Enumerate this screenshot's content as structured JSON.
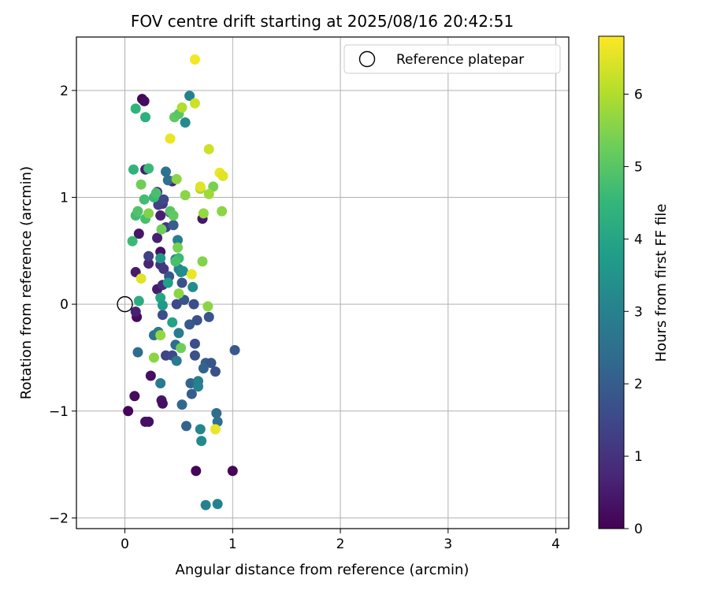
{
  "chart_data": {
    "type": "scatter",
    "title": "FOV centre drift starting at 2025/08/16 20:42:51",
    "xlabel": "Angular distance from reference (arcmin)",
    "ylabel": "Rotation from reference (arcmin)",
    "xlim": [
      -0.45,
      4.12
    ],
    "ylim": [
      -2.1,
      2.5
    ],
    "xticks": [
      0,
      1,
      2,
      3,
      4
    ],
    "yticks": [
      -2,
      -1,
      0,
      1,
      2
    ],
    "xtick_labels": [
      "0",
      "1",
      "2",
      "3",
      "4"
    ],
    "ytick_labels": [
      "−2",
      "−1",
      "0",
      "1",
      "2"
    ],
    "grid": true,
    "legend": {
      "position": "top-right",
      "label": "Reference platepar"
    },
    "reference_point": {
      "x": 0,
      "y": 0
    },
    "colorbar": {
      "label": "Hours from first FF file",
      "colormap": "viridis",
      "range": [
        0,
        6.8
      ],
      "ticks": [
        0,
        1,
        2,
        3,
        4,
        5,
        6
      ],
      "tick_labels": [
        "0",
        "1",
        "2",
        "3",
        "4",
        "5",
        "6"
      ]
    },
    "colormap_stops": [
      "#440154",
      "#482878",
      "#3e4989",
      "#31688e",
      "#26828e",
      "#1f9e89",
      "#35b779",
      "#6ece58",
      "#b5de2b",
      "#fde725"
    ],
    "series": [
      {
        "values": [
          {
            "x": 0.16,
            "y": 1.92,
            "c": 0.1
          },
          {
            "x": 0.18,
            "y": 1.9,
            "c": 0.2
          },
          {
            "x": 0.66,
            "y": -1.56,
            "c": 0.1
          },
          {
            "x": 1.0,
            "y": -1.56,
            "c": 0.1
          },
          {
            "x": 0.03,
            "y": -1.0,
            "c": 0.1
          },
          {
            "x": 0.09,
            "y": -0.86,
            "c": 0.2
          },
          {
            "x": 0.19,
            "y": -1.1,
            "c": 0.3
          },
          {
            "x": 0.22,
            "y": -1.1,
            "c": 0.3
          },
          {
            "x": 0.24,
            "y": -0.67,
            "c": 0.3
          },
          {
            "x": 0.34,
            "y": -0.9,
            "c": 0.4
          },
          {
            "x": 0.35,
            "y": -0.93,
            "c": 0.3
          },
          {
            "x": 0.11,
            "y": -0.12,
            "c": 0.2
          },
          {
            "x": 0.1,
            "y": -0.07,
            "c": 0.6
          },
          {
            "x": 0.1,
            "y": 0.3,
            "c": 0.5
          },
          {
            "x": 0.13,
            "y": 0.66,
            "c": 0.4
          },
          {
            "x": 0.22,
            "y": 0.38,
            "c": 0.7
          },
          {
            "x": 0.3,
            "y": 0.14,
            "c": 0.5
          },
          {
            "x": 0.33,
            "y": 0.49,
            "c": 0.3
          },
          {
            "x": 0.3,
            "y": 0.62,
            "c": 0.6
          },
          {
            "x": 0.33,
            "y": 0.83,
            "c": 0.6
          },
          {
            "x": 0.35,
            "y": 0.94,
            "c": 1.1
          },
          {
            "x": 0.31,
            "y": 0.93,
            "c": 1.3
          },
          {
            "x": 0.36,
            "y": 0.98,
            "c": 1.5
          },
          {
            "x": 0.3,
            "y": 1.05,
            "c": 0.9
          },
          {
            "x": 0.19,
            "y": 1.26,
            "c": 0.6
          },
          {
            "x": 0.33,
            "y": 0.37,
            "c": 1.0
          },
          {
            "x": 0.36,
            "y": 0.33,
            "c": 1.1
          },
          {
            "x": 0.35,
            "y": 0.18,
            "c": 0.8
          },
          {
            "x": 0.38,
            "y": 0.72,
            "c": 1.2
          },
          {
            "x": 0.42,
            "y": 0.86,
            "c": 0.9
          },
          {
            "x": 0.44,
            "y": 1.15,
            "c": 0.7
          },
          {
            "x": 0.72,
            "y": 0.8,
            "c": 0.4
          },
          {
            "x": 0.38,
            "y": -0.48,
            "c": 1.4
          },
          {
            "x": 0.35,
            "y": -0.1,
            "c": 1.6
          },
          {
            "x": 0.22,
            "y": 0.45,
            "c": 1.3
          },
          {
            "x": 0.45,
            "y": 0.74,
            "c": 2.0
          },
          {
            "x": 0.41,
            "y": 0.26,
            "c": 1.8
          },
          {
            "x": 0.53,
            "y": 0.2,
            "c": 1.7
          },
          {
            "x": 0.48,
            "y": 0.0,
            "c": 1.5
          },
          {
            "x": 0.55,
            "y": 0.04,
            "c": 1.8
          },
          {
            "x": 0.64,
            "y": 0.0,
            "c": 1.6
          },
          {
            "x": 0.67,
            "y": -0.15,
            "c": 1.7
          },
          {
            "x": 0.6,
            "y": -0.19,
            "c": 1.9
          },
          {
            "x": 0.78,
            "y": -0.12,
            "c": 1.8
          },
          {
            "x": 0.44,
            "y": -0.48,
            "c": 1.5
          },
          {
            "x": 0.65,
            "y": -0.37,
            "c": 1.6
          },
          {
            "x": 0.65,
            "y": -0.48,
            "c": 1.7
          },
          {
            "x": 0.75,
            "y": -0.55,
            "c": 2.0
          },
          {
            "x": 0.8,
            "y": -0.55,
            "c": 1.8
          },
          {
            "x": 0.84,
            "y": -0.63,
            "c": 1.7
          },
          {
            "x": 0.73,
            "y": -0.6,
            "c": 2.2
          },
          {
            "x": 1.02,
            "y": -0.43,
            "c": 1.9
          },
          {
            "x": 0.61,
            "y": -0.74,
            "c": 2.2
          },
          {
            "x": 0.62,
            "y": -0.84,
            "c": 2.0
          },
          {
            "x": 0.53,
            "y": -0.94,
            "c": 2.3
          },
          {
            "x": 0.57,
            "y": -1.14,
            "c": 2.2
          },
          {
            "x": 0.85,
            "y": -1.02,
            "c": 2.4
          },
          {
            "x": 0.86,
            "y": -1.1,
            "c": 2.5
          },
          {
            "x": 0.12,
            "y": -0.45,
            "c": 2.4
          },
          {
            "x": 0.27,
            "y": -0.29,
            "c": 2.6
          },
          {
            "x": 0.31,
            "y": -0.26,
            "c": 2.8
          },
          {
            "x": 0.47,
            "y": -0.38,
            "c": 2.4
          },
          {
            "x": 0.48,
            "y": -0.53,
            "c": 2.8
          },
          {
            "x": 0.33,
            "y": -0.74,
            "c": 2.8
          },
          {
            "x": 0.38,
            "y": 1.24,
            "c": 2.6
          },
          {
            "x": 0.4,
            "y": 1.16,
            "c": 2.5
          },
          {
            "x": 0.49,
            "y": 0.6,
            "c": 2.9
          },
          {
            "x": 0.47,
            "y": 0.42,
            "c": 2.9
          },
          {
            "x": 0.5,
            "y": 0.33,
            "c": 3.1
          },
          {
            "x": 0.52,
            "y": 0.3,
            "c": 3.2
          },
          {
            "x": 0.54,
            "y": 0.31,
            "c": 3.3
          },
          {
            "x": 0.63,
            "y": 0.16,
            "c": 3.3
          },
          {
            "x": 0.5,
            "y": -0.27,
            "c": 2.9
          },
          {
            "x": 0.6,
            "y": 1.95,
            "c": 3.0
          },
          {
            "x": 0.56,
            "y": 1.7,
            "c": 3.3
          },
          {
            "x": 0.68,
            "y": -0.72,
            "c": 2.9
          },
          {
            "x": 0.68,
            "y": -0.77,
            "c": 3.0
          },
          {
            "x": 0.7,
            "y": -1.17,
            "c": 3.1
          },
          {
            "x": 0.71,
            "y": -1.28,
            "c": 3.2
          },
          {
            "x": 0.75,
            "y": -1.88,
            "c": 3.0
          },
          {
            "x": 0.86,
            "y": -1.87,
            "c": 3.0
          },
          {
            "x": 0.33,
            "y": 0.43,
            "c": 3.6
          },
          {
            "x": 0.4,
            "y": 0.2,
            "c": 3.8
          },
          {
            "x": 0.33,
            "y": 0.06,
            "c": 4.0
          },
          {
            "x": 0.35,
            "y": -0.01,
            "c": 3.7
          },
          {
            "x": 0.13,
            "y": 0.03,
            "c": 4.2
          },
          {
            "x": 0.1,
            "y": 1.83,
            "c": 4.4
          },
          {
            "x": 0.19,
            "y": 1.75,
            "c": 4.3
          },
          {
            "x": 0.08,
            "y": 1.26,
            "c": 4.4
          },
          {
            "x": 0.22,
            "y": 1.27,
            "c": 4.6
          },
          {
            "x": 0.18,
            "y": 0.98,
            "c": 4.7
          },
          {
            "x": 0.27,
            "y": 1.0,
            "c": 4.6
          },
          {
            "x": 0.29,
            "y": 1.04,
            "c": 4.8
          },
          {
            "x": 0.1,
            "y": 0.83,
            "c": 4.7
          },
          {
            "x": 0.12,
            "y": 0.87,
            "c": 4.9
          },
          {
            "x": 0.19,
            "y": 0.8,
            "c": 4.8
          },
          {
            "x": 0.07,
            "y": 0.59,
            "c": 4.6
          },
          {
            "x": 0.5,
            "y": 0.43,
            "c": 4.6
          },
          {
            "x": 0.47,
            "y": 0.4,
            "c": 4.8
          },
          {
            "x": 0.44,
            "y": -0.17,
            "c": 3.9
          },
          {
            "x": 0.46,
            "y": 1.75,
            "c": 5.1
          },
          {
            "x": 0.5,
            "y": 1.78,
            "c": 5.0
          },
          {
            "x": 0.42,
            "y": 0.87,
            "c": 5.0
          },
          {
            "x": 0.45,
            "y": 0.83,
            "c": 5.1
          },
          {
            "x": 0.34,
            "y": 0.7,
            "c": 5.3
          },
          {
            "x": 0.49,
            "y": 0.53,
            "c": 5.4
          },
          {
            "x": 0.15,
            "y": 1.12,
            "c": 5.3
          },
          {
            "x": 0.22,
            "y": 0.85,
            "c": 5.5
          },
          {
            "x": 0.48,
            "y": 1.17,
            "c": 5.6
          },
          {
            "x": 0.56,
            "y": 1.02,
            "c": 5.6
          },
          {
            "x": 0.82,
            "y": 1.1,
            "c": 5.4
          },
          {
            "x": 0.9,
            "y": 0.87,
            "c": 5.6
          },
          {
            "x": 0.72,
            "y": 0.4,
            "c": 5.5
          },
          {
            "x": 0.73,
            "y": 0.85,
            "c": 5.7
          },
          {
            "x": 0.77,
            "y": -0.02,
            "c": 5.6
          },
          {
            "x": 0.5,
            "y": 0.1,
            "c": 5.6
          },
          {
            "x": 0.52,
            "y": -0.41,
            "c": 5.3
          },
          {
            "x": 0.27,
            "y": -0.5,
            "c": 5.6
          },
          {
            "x": 0.33,
            "y": -0.29,
            "c": 5.7
          },
          {
            "x": 0.78,
            "y": 1.03,
            "c": 5.8
          },
          {
            "x": 0.7,
            "y": 1.08,
            "c": 5.9
          },
          {
            "x": 0.53,
            "y": 1.84,
            "c": 6.0
          },
          {
            "x": 0.78,
            "y": 1.45,
            "c": 6.3
          },
          {
            "x": 0.65,
            "y": 1.88,
            "c": 6.3
          },
          {
            "x": 0.88,
            "y": 1.23,
            "c": 6.6
          },
          {
            "x": 0.91,
            "y": 1.2,
            "c": 6.5
          },
          {
            "x": 0.7,
            "y": 1.1,
            "c": 6.5
          },
          {
            "x": 0.42,
            "y": 1.55,
            "c": 6.6
          },
          {
            "x": 0.65,
            "y": 2.29,
            "c": 6.7
          },
          {
            "x": 0.15,
            "y": 0.24,
            "c": 6.5
          },
          {
            "x": 0.62,
            "y": 0.28,
            "c": 6.6
          },
          {
            "x": 0.84,
            "y": -1.17,
            "c": 6.6
          }
        ]
      }
    ]
  }
}
